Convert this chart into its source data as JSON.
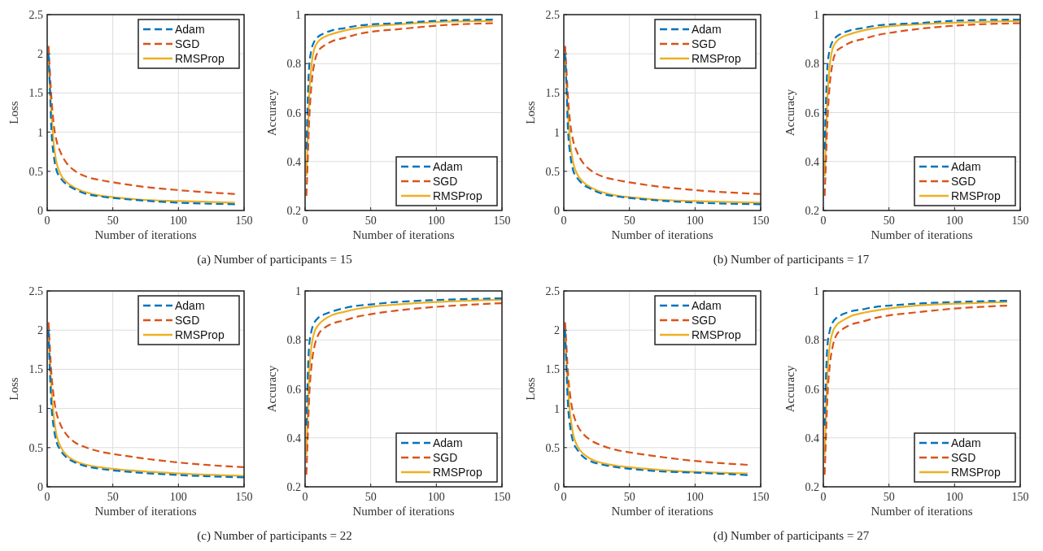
{
  "chart_data": [
    {
      "type": "line",
      "xlabel": "Number of iterations",
      "ylabel": "Loss",
      "x": [
        1,
        2,
        3,
        5,
        7,
        10,
        15,
        20,
        30,
        40,
        50,
        70,
        100,
        143
      ],
      "xlim": [
        0,
        150
      ],
      "xticks": [
        0,
        50,
        100,
        150
      ],
      "ylim": [
        0,
        2.5
      ],
      "yticks": [
        0,
        0.5,
        1,
        1.5,
        2,
        2.5
      ],
      "grid": true,
      "legend": "top right",
      "annotations": [
        "(a) Number of participants = 15"
      ],
      "series": [
        {
          "name": "Adam",
          "color": "#0072bd",
          "line_style": "dashed",
          "values": [
            2.0,
            1.6,
            1.1,
            0.7,
            0.52,
            0.42,
            0.33,
            0.28,
            0.21,
            0.18,
            0.16,
            0.13,
            0.1,
            0.08
          ]
        },
        {
          "name": "SGD",
          "color": "#d95319",
          "line_style": "dashed",
          "values": [
            2.1,
            1.8,
            1.5,
            1.1,
            0.9,
            0.75,
            0.6,
            0.52,
            0.43,
            0.39,
            0.36,
            0.31,
            0.26,
            0.21
          ]
        },
        {
          "name": "RMSProp",
          "color": "#edb120",
          "line_style": "solid",
          "values": [
            1.95,
            1.6,
            1.3,
            0.85,
            0.62,
            0.47,
            0.36,
            0.3,
            0.23,
            0.19,
            0.17,
            0.14,
            0.12,
            0.1
          ]
        }
      ]
    },
    {
      "type": "line",
      "xlabel": "Number of iterations",
      "ylabel": "Accuracy",
      "x": [
        1,
        2,
        3,
        5,
        7,
        10,
        15,
        20,
        30,
        40,
        50,
        70,
        100,
        143
      ],
      "xlim": [
        0,
        150
      ],
      "xticks": [
        0,
        50,
        100,
        150
      ],
      "ylim": [
        0.2,
        1
      ],
      "yticks": [
        0.2,
        0.4,
        0.6,
        0.8,
        1
      ],
      "grid": true,
      "legend": "bottom right",
      "series": [
        {
          "name": "Adam",
          "color": "#0072bd",
          "line_style": "dashed",
          "values": [
            0.45,
            0.65,
            0.78,
            0.86,
            0.89,
            0.91,
            0.925,
            0.935,
            0.945,
            0.955,
            0.96,
            0.965,
            0.975,
            0.98
          ]
        },
        {
          "name": "SGD",
          "color": "#d95319",
          "line_style": "dashed",
          "values": [
            0.26,
            0.4,
            0.55,
            0.72,
            0.8,
            0.85,
            0.875,
            0.89,
            0.905,
            0.92,
            0.93,
            0.94,
            0.955,
            0.965
          ]
        },
        {
          "name": "RMSProp",
          "color": "#edb120",
          "line_style": "solid",
          "values": [
            0.34,
            0.5,
            0.65,
            0.8,
            0.86,
            0.89,
            0.91,
            0.92,
            0.935,
            0.945,
            0.952,
            0.96,
            0.97,
            0.975
          ]
        }
      ]
    },
    {
      "type": "line",
      "xlabel": "Number of iterations",
      "ylabel": "Loss",
      "x": [
        1,
        2,
        3,
        5,
        7,
        10,
        15,
        20,
        30,
        40,
        50,
        70,
        100,
        150
      ],
      "xlim": [
        0,
        150
      ],
      "xticks": [
        0,
        50,
        100,
        150
      ],
      "ylim": [
        0,
        2.5
      ],
      "yticks": [
        0,
        0.5,
        1,
        1.5,
        2,
        2.5
      ],
      "grid": true,
      "legend": "top right",
      "annotations": [
        "(b) Number of participants = 17"
      ],
      "series": [
        {
          "name": "Adam",
          "color": "#0072bd",
          "line_style": "dashed",
          "values": [
            2.0,
            1.6,
            1.1,
            0.7,
            0.52,
            0.42,
            0.33,
            0.28,
            0.21,
            0.18,
            0.16,
            0.13,
            0.1,
            0.08
          ]
        },
        {
          "name": "SGD",
          "color": "#d95319",
          "line_style": "dashed",
          "values": [
            2.1,
            1.8,
            1.5,
            1.1,
            0.9,
            0.75,
            0.6,
            0.52,
            0.43,
            0.39,
            0.36,
            0.31,
            0.26,
            0.21
          ]
        },
        {
          "name": "RMSProp",
          "color": "#edb120",
          "line_style": "solid",
          "values": [
            1.95,
            1.6,
            1.3,
            0.85,
            0.62,
            0.47,
            0.36,
            0.3,
            0.23,
            0.19,
            0.17,
            0.14,
            0.12,
            0.1
          ]
        }
      ]
    },
    {
      "type": "line",
      "xlabel": "Number of iterations",
      "ylabel": "Accuracy",
      "x": [
        1,
        2,
        3,
        5,
        7,
        10,
        15,
        20,
        30,
        40,
        50,
        70,
        100,
        150
      ],
      "xlim": [
        0,
        150
      ],
      "xticks": [
        0,
        50,
        100,
        150
      ],
      "ylim": [
        0.2,
        1
      ],
      "yticks": [
        0.2,
        0.4,
        0.6,
        0.8,
        1
      ],
      "grid": true,
      "legend": "bottom right",
      "series": [
        {
          "name": "Adam",
          "color": "#0072bd",
          "line_style": "dashed",
          "values": [
            0.45,
            0.65,
            0.78,
            0.86,
            0.89,
            0.91,
            0.925,
            0.935,
            0.945,
            0.955,
            0.96,
            0.965,
            0.975,
            0.98
          ]
        },
        {
          "name": "SGD",
          "color": "#d95319",
          "line_style": "dashed",
          "values": [
            0.26,
            0.4,
            0.55,
            0.72,
            0.8,
            0.85,
            0.87,
            0.885,
            0.9,
            0.915,
            0.925,
            0.94,
            0.955,
            0.965
          ]
        },
        {
          "name": "RMSProp",
          "color": "#edb120",
          "line_style": "solid",
          "values": [
            0.34,
            0.5,
            0.65,
            0.8,
            0.86,
            0.89,
            0.91,
            0.92,
            0.935,
            0.945,
            0.952,
            0.96,
            0.967,
            0.975
          ]
        }
      ]
    },
    {
      "type": "line",
      "xlabel": "Number of iterations",
      "ylabel": "Loss",
      "x": [
        1,
        2,
        3,
        5,
        7,
        10,
        15,
        20,
        30,
        40,
        50,
        70,
        100,
        150
      ],
      "xlim": [
        0,
        150
      ],
      "xticks": [
        0,
        50,
        100,
        150
      ],
      "ylim": [
        0,
        2.5
      ],
      "yticks": [
        0,
        0.5,
        1,
        1.5,
        2,
        2.5
      ],
      "grid": true,
      "legend": "top right",
      "annotations": [
        "(c) Number of participants = 22"
      ],
      "series": [
        {
          "name": "Adam",
          "color": "#0072bd",
          "line_style": "dashed",
          "values": [
            2.0,
            1.5,
            1.1,
            0.75,
            0.58,
            0.47,
            0.37,
            0.32,
            0.26,
            0.23,
            0.21,
            0.18,
            0.15,
            0.12
          ]
        },
        {
          "name": "SGD",
          "color": "#d95319",
          "line_style": "dashed",
          "values": [
            2.1,
            1.8,
            1.5,
            1.15,
            0.95,
            0.8,
            0.66,
            0.58,
            0.5,
            0.45,
            0.42,
            0.37,
            0.31,
            0.25
          ]
        },
        {
          "name": "RMSProp",
          "color": "#edb120",
          "line_style": "solid",
          "values": [
            1.95,
            1.6,
            1.3,
            0.9,
            0.67,
            0.52,
            0.4,
            0.34,
            0.28,
            0.25,
            0.23,
            0.2,
            0.17,
            0.14
          ]
        }
      ]
    },
    {
      "type": "line",
      "xlabel": "Number of iterations",
      "ylabel": "Accuracy",
      "x": [
        1,
        2,
        3,
        5,
        7,
        10,
        15,
        20,
        30,
        40,
        50,
        70,
        100,
        150
      ],
      "xlim": [
        0,
        150
      ],
      "xticks": [
        0,
        50,
        100,
        150
      ],
      "ylim": [
        0.2,
        1
      ],
      "yticks": [
        0.2,
        0.4,
        0.6,
        0.8,
        1
      ],
      "grid": true,
      "legend": "bottom right",
      "series": [
        {
          "name": "Adam",
          "color": "#0072bd",
          "line_style": "dashed",
          "values": [
            0.45,
            0.65,
            0.77,
            0.84,
            0.87,
            0.89,
            0.905,
            0.915,
            0.93,
            0.94,
            0.945,
            0.955,
            0.963,
            0.97
          ]
        },
        {
          "name": "SGD",
          "color": "#d95319",
          "line_style": "dashed",
          "values": [
            0.25,
            0.4,
            0.55,
            0.7,
            0.77,
            0.82,
            0.85,
            0.865,
            0.88,
            0.895,
            0.905,
            0.92,
            0.935,
            0.95
          ]
        },
        {
          "name": "RMSProp",
          "color": "#edb120",
          "line_style": "solid",
          "values": [
            0.33,
            0.5,
            0.65,
            0.78,
            0.83,
            0.86,
            0.885,
            0.9,
            0.915,
            0.927,
            0.935,
            0.945,
            0.955,
            0.965
          ]
        }
      ]
    },
    {
      "type": "line",
      "xlabel": "Number of iterations",
      "ylabel": "Loss",
      "x": [
        1,
        2,
        3,
        5,
        7,
        10,
        15,
        20,
        30,
        40,
        50,
        70,
        100,
        140
      ],
      "xlim": [
        0,
        150
      ],
      "xticks": [
        0,
        50,
        100,
        150
      ],
      "ylim": [
        0,
        2.5
      ],
      "yticks": [
        0,
        0.5,
        1,
        1.5,
        2,
        2.5
      ],
      "grid": true,
      "legend": "top right",
      "annotations": [
        "(d) Number of participants = 27"
      ],
      "series": [
        {
          "name": "Adam",
          "color": "#0072bd",
          "line_style": "dashed",
          "values": [
            2.0,
            1.5,
            1.1,
            0.75,
            0.58,
            0.48,
            0.38,
            0.33,
            0.28,
            0.25,
            0.23,
            0.2,
            0.18,
            0.15
          ]
        },
        {
          "name": "SGD",
          "color": "#d95319",
          "line_style": "dashed",
          "values": [
            2.1,
            1.8,
            1.5,
            1.15,
            0.95,
            0.8,
            0.67,
            0.6,
            0.52,
            0.47,
            0.44,
            0.39,
            0.33,
            0.28
          ]
        },
        {
          "name": "RMSProp",
          "color": "#edb120",
          "line_style": "solid",
          "values": [
            1.95,
            1.6,
            1.3,
            0.9,
            0.68,
            0.53,
            0.42,
            0.36,
            0.3,
            0.27,
            0.25,
            0.22,
            0.19,
            0.17
          ]
        }
      ]
    },
    {
      "type": "line",
      "xlabel": "Number of iterations",
      "ylabel": "Accuracy",
      "x": [
        1,
        2,
        3,
        5,
        7,
        10,
        15,
        20,
        30,
        40,
        50,
        70,
        100,
        140
      ],
      "xlim": [
        0,
        150
      ],
      "xticks": [
        0,
        50,
        100,
        150
      ],
      "ylim": [
        0.2,
        1
      ],
      "yticks": [
        0.2,
        0.4,
        0.6,
        0.8,
        1
      ],
      "grid": true,
      "legend": "bottom right",
      "series": [
        {
          "name": "Adam",
          "color": "#0072bd",
          "line_style": "dashed",
          "values": [
            0.45,
            0.65,
            0.77,
            0.84,
            0.87,
            0.89,
            0.905,
            0.915,
            0.925,
            0.935,
            0.94,
            0.948,
            0.955,
            0.96
          ]
        },
        {
          "name": "SGD",
          "color": "#d95319",
          "line_style": "dashed",
          "values": [
            0.25,
            0.4,
            0.55,
            0.7,
            0.77,
            0.82,
            0.845,
            0.86,
            0.875,
            0.89,
            0.9,
            0.912,
            0.928,
            0.94
          ]
        },
        {
          "name": "RMSProp",
          "color": "#edb120",
          "line_style": "solid",
          "values": [
            0.33,
            0.5,
            0.65,
            0.78,
            0.83,
            0.86,
            0.88,
            0.895,
            0.91,
            0.92,
            0.928,
            0.94,
            0.948,
            0.955
          ]
        }
      ]
    }
  ]
}
